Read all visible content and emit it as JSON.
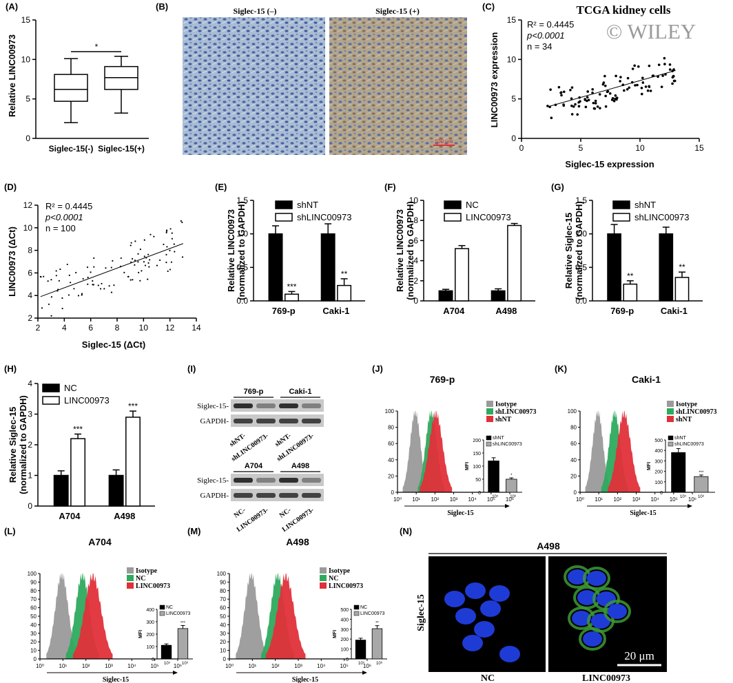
{
  "watermark": "© WILEY",
  "panels": {
    "A": {
      "letter": "(A)",
      "ylabel": "Relative LINC00973",
      "yticks": [
        "0",
        "5",
        "10",
        "15"
      ],
      "categories": [
        "Siglec-15(-)",
        "Siglec-15(+)"
      ],
      "sig": "*",
      "chart_data": {
        "type": "box",
        "categories": [
          "Siglec-15(-)",
          "Siglec-15(+)"
        ],
        "ylim": [
          0,
          15
        ],
        "boxes": [
          {
            "min": 2.0,
            "q1": 4.7,
            "median": 6.2,
            "q3": 8.1,
            "max": 10.1
          },
          {
            "min": 3.2,
            "q1": 6.2,
            "median": 7.7,
            "q3": 9.1,
            "max": 10.4
          }
        ]
      }
    },
    "B": {
      "letter": "(B)",
      "titles": [
        "Siglec-15 (–)",
        "Siglec-15 (+)"
      ],
      "scale": "100 μm"
    },
    "C": {
      "letter": "(C)",
      "title": "TCGA kidney cells",
      "r2": "R² = 0.4445",
      "p": "p<0.0001",
      "n": "n = 34",
      "xlabel": "Siglec-15 expression",
      "ylabel": "LINC00973 expression",
      "xticks": [
        "0",
        "5",
        "10",
        "15"
      ],
      "yticks": [
        "0",
        "5",
        "10",
        "15"
      ],
      "chart_data": {
        "type": "scatter",
        "xlim": [
          0,
          15
        ],
        "ylim": [
          0,
          15
        ],
        "fit": [
          [
            2.2,
            4.0
          ],
          [
            13,
            8.6
          ]
        ]
      }
    },
    "D": {
      "letter": "(D)",
      "r2": "R² = 0.4445",
      "p": "p<0.0001",
      "n": "n = 100",
      "xlabel": "Siglec-15 (ΔCt)",
      "ylabel": "LINC00973 (ΔCt)",
      "xticks": [
        "2",
        "4",
        "6",
        "8",
        "10",
        "12",
        "14"
      ],
      "yticks": [
        "2",
        "4",
        "6",
        "8",
        "10",
        "12"
      ],
      "chart_data": {
        "type": "scatter",
        "xlim": [
          2,
          14
        ],
        "ylim": [
          2,
          12
        ],
        "fit": [
          [
            2.2,
            3.9
          ],
          [
            13,
            8.6
          ]
        ]
      }
    },
    "E": {
      "letter": "(E)",
      "ylabel1": "Relative LINC00973",
      "ylabel2": "(normalized to GAPDH)",
      "legend": [
        "shNT",
        "shLINC00973"
      ],
      "yticks": [
        "0.0",
        "0.5",
        "1.0",
        "1.5"
      ],
      "chart_data": {
        "type": "bar",
        "categories": [
          "769-p",
          "Caki-1"
        ],
        "ylim": [
          0,
          1.5
        ],
        "series": [
          {
            "name": "shNT",
            "values": [
              1.0,
              1.0
            ],
            "err": [
              0.12,
              0.15
            ]
          },
          {
            "name": "shLINC00973",
            "values": [
              0.1,
              0.23
            ],
            "err": [
              0.04,
              0.1
            ]
          }
        ],
        "sig": [
          "***",
          "**"
        ]
      }
    },
    "F": {
      "letter": "(F)",
      "ylabel1": "Relative LINC00973",
      "ylabel2": "(normalized to GAPDH)",
      "legend": [
        "NC",
        "LINC00973"
      ],
      "yticks": [
        "0",
        "2",
        "4",
        "6",
        "8",
        "10"
      ],
      "chart_data": {
        "type": "bar",
        "categories": [
          "A704",
          "A498"
        ],
        "ylim": [
          0,
          10
        ],
        "series": [
          {
            "name": "NC",
            "values": [
              1.0,
              1.0
            ],
            "err": [
              0.15,
              0.2
            ]
          },
          {
            "name": "LINC00973",
            "values": [
              5.2,
              7.5
            ],
            "err": [
              0.3,
              0.2
            ]
          }
        ],
        "sig": [
          "",
          ""
        ]
      }
    },
    "G": {
      "letter": "(G)",
      "ylabel1": "Relative Siglec-15",
      "ylabel2": "(normalized to GAPDH)",
      "legend": [
        "shNT",
        "shLINC00973"
      ],
      "yticks": [
        "0.0",
        "0.5",
        "1.0",
        "1.5"
      ],
      "chart_data": {
        "type": "bar",
        "categories": [
          "769-p",
          "Caki-1"
        ],
        "ylim": [
          0,
          1.5
        ],
        "series": [
          {
            "name": "shNT",
            "values": [
              1.0,
              1.0
            ],
            "err": [
              0.14,
              0.1
            ]
          },
          {
            "name": "shLINC00973",
            "values": [
              0.25,
              0.35
            ],
            "err": [
              0.05,
              0.08
            ]
          }
        ],
        "sig": [
          "**",
          "**"
        ]
      }
    },
    "H": {
      "letter": "(H)",
      "ylabel1": "Relative Siglec-15",
      "ylabel2": "(normalized to GAPDH)",
      "legend": [
        "NC",
        "LINC00973"
      ],
      "yticks": [
        "0",
        "1",
        "2",
        "3",
        "4"
      ],
      "chart_data": {
        "type": "bar",
        "categories": [
          "A704",
          "A498"
        ],
        "ylim": [
          0,
          4
        ],
        "series": [
          {
            "name": "NC",
            "values": [
              1.0,
              1.0
            ],
            "err": [
              0.15,
              0.18
            ]
          },
          {
            "name": "LINC00973",
            "values": [
              2.2,
              2.9
            ],
            "err": [
              0.15,
              0.2
            ]
          }
        ],
        "sig": [
          "***",
          "***"
        ]
      }
    },
    "I": {
      "letter": "(I)",
      "top_groups": [
        "769-p",
        "Caki-1"
      ],
      "bottom_groups": [
        "A704",
        "A498"
      ],
      "rows": [
        "Siglec-15-",
        "GAPDH-"
      ],
      "top_lanes": [
        "shNT-",
        "shLINC00973-",
        "shNT-",
        "shLINC00973-"
      ],
      "bottom_lanes": [
        "NC-",
        "LINC00973-",
        "NC-",
        "LINC00973-"
      ]
    },
    "J": {
      "letter": "(J)",
      "title": "769-p",
      "legend": [
        "Isotype",
        "shLINC00973",
        "shNT"
      ],
      "yticks": [
        "0",
        "20",
        "40",
        "60",
        "80",
        "100"
      ],
      "xlabel": "Siglec-15",
      "inset_legend": [
        "shNT",
        "shLINC00973"
      ],
      "inset_yticks": [
        "0",
        "50",
        "100",
        "150",
        "200"
      ],
      "mfi": "MFI",
      "chart_data": {
        "type": "bar",
        "categories": [
          "shNT",
          "shLINC00973"
        ],
        "ylim": [
          0,
          200
        ],
        "values": [
          120,
          50
        ],
        "sig": [
          "",
          "*"
        ]
      }
    },
    "K": {
      "letter": "(K)",
      "title": "Caki-1",
      "legend": [
        "Isotype",
        "shLINC00973",
        "shNT"
      ],
      "yticks": [
        "0",
        "20",
        "40",
        "60",
        "80",
        "100"
      ],
      "xlabel": "Siglec-15",
      "inset_legend": [
        "shNT",
        "shLINC00973"
      ],
      "inset_yticks": [
        "0",
        "100",
        "200",
        "300",
        "400",
        "500"
      ],
      "mfi": "MFI",
      "chart_data": {
        "type": "bar",
        "categories": [
          "shNT",
          "shLINC00973"
        ],
        "ylim": [
          0,
          500
        ],
        "values": [
          380,
          150
        ],
        "sig": [
          "",
          "***"
        ]
      }
    },
    "L": {
      "letter": "(L)",
      "title": "A704",
      "legend": [
        "Isotype",
        "NC",
        "LINC00973"
      ],
      "yticks": [
        "0",
        "10",
        "20",
        "30",
        "40",
        "50",
        "60",
        "70",
        "80",
        "90",
        "100"
      ],
      "xlabel": "Siglec-15",
      "inset_legend": [
        "NC",
        "LINC00973"
      ],
      "inset_yticks": [
        "0",
        "100",
        "200",
        "300",
        "400"
      ],
      "mfi": "MFI",
      "chart_data": {
        "type": "bar",
        "categories": [
          "NC",
          "LINC00973"
        ],
        "ylim": [
          0,
          400
        ],
        "values": [
          110,
          245
        ],
        "sig": [
          "",
          "***"
        ]
      }
    },
    "M": {
      "letter": "(M)",
      "title": "A498",
      "legend": [
        "Isotype",
        "NC",
        "LINC00973"
      ],
      "yticks": [
        "0",
        "10",
        "20",
        "30",
        "40",
        "50",
        "60",
        "70",
        "80",
        "90",
        "100"
      ],
      "xlabel": "Siglec-15",
      "inset_legend": [
        "NC",
        "LINC00973"
      ],
      "inset_yticks": [
        "0",
        "100",
        "200",
        "300",
        "400",
        "500"
      ],
      "mfi": "MFI",
      "chart_data": {
        "type": "bar",
        "categories": [
          "NC",
          "LINC00973"
        ],
        "ylim": [
          0,
          500
        ],
        "values": [
          190,
          305
        ],
        "sig": [
          "",
          "**"
        ]
      }
    },
    "N": {
      "letter": "(N)",
      "title": "A498",
      "side": "Siglec-15",
      "labels": [
        "NC",
        "LINC00973"
      ],
      "scale": "20 μm"
    }
  },
  "xticks_log": [
    "10⁰",
    "10¹",
    "10²",
    "10³",
    "10⁴",
    "10⁵",
    "10⁶"
  ],
  "colors": {
    "isotype": "#9a9a9a",
    "green": "#2eaa5e",
    "red": "#e0303a",
    "black": "#000000",
    "white": "#ffffff"
  }
}
